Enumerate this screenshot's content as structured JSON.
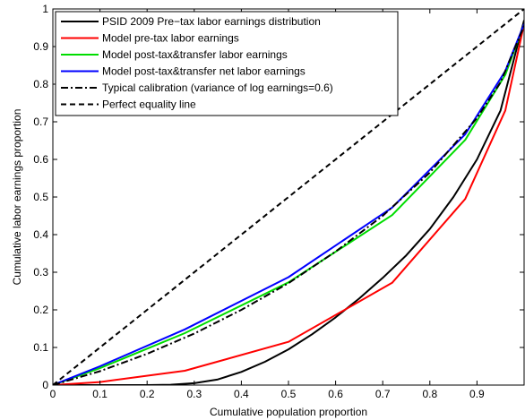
{
  "chart_data": {
    "type": "line",
    "title": "",
    "xlabel": "Cumulative population proportion",
    "ylabel": "Cumulative labor earnings proportion",
    "xlim": [
      0,
      1
    ],
    "ylim": [
      0,
      1
    ],
    "xticks": [
      0,
      0.1,
      0.2,
      0.3,
      0.4,
      0.5,
      0.6,
      0.7,
      0.8,
      0.9
    ],
    "xtick_labels": [
      "0",
      "0.1",
      "0.2",
      "0.3",
      "0.4",
      "0.5",
      "0.6",
      "0.7",
      "0.8",
      "0.9"
    ],
    "yticks": [
      0,
      0.1,
      0.2,
      0.3,
      0.4,
      0.5,
      0.6,
      0.7,
      0.8,
      0.9,
      1
    ],
    "ytick_labels": [
      "0",
      "0.1",
      "0.2",
      "0.3",
      "0.4",
      "0.5",
      "0.6",
      "0.7",
      "0.8",
      "0.9",
      "1"
    ],
    "grid": false,
    "legend_position": "top-left",
    "series": [
      {
        "name": "PSID 2009 Pre−tax labor earnings distribution",
        "color": "#000000",
        "dash": "solid",
        "x": [
          0,
          0.2,
          0.25,
          0.3,
          0.35,
          0.4,
          0.45,
          0.5,
          0.55,
          0.6,
          0.65,
          0.7,
          0.75,
          0.8,
          0.85,
          0.9,
          0.95,
          1.0
        ],
        "y": [
          0,
          0,
          0.001,
          0.005,
          0.015,
          0.035,
          0.062,
          0.095,
          0.135,
          0.18,
          0.23,
          0.285,
          0.345,
          0.415,
          0.5,
          0.6,
          0.73,
          0.97
        ]
      },
      {
        "name": "Model pre-tax labor earnings",
        "color": "#ff0000",
        "dash": "solid",
        "x": [
          0,
          0.1,
          0.28,
          0.5,
          0.72,
          0.875,
          0.96,
          1.0
        ],
        "y": [
          0,
          0.008,
          0.038,
          0.115,
          0.272,
          0.495,
          0.73,
          0.96
        ]
      },
      {
        "name": "Model post-tax&transfer labor earnings",
        "color": "#00dd00",
        "dash": "solid",
        "x": [
          0,
          0.1,
          0.28,
          0.5,
          0.72,
          0.875,
          0.96,
          1.0
        ],
        "y": [
          0,
          0.045,
          0.138,
          0.273,
          0.452,
          0.652,
          0.825,
          0.96
        ]
      },
      {
        "name": "Model post-tax&transfer net labor earnings",
        "color": "#0000ff",
        "dash": "solid",
        "x": [
          0,
          0.1,
          0.28,
          0.5,
          0.72,
          0.875,
          0.96,
          1.0
        ],
        "y": [
          0,
          0.05,
          0.148,
          0.287,
          0.472,
          0.667,
          0.835,
          0.96
        ]
      },
      {
        "name": "Typical calibration (variance of log earnings=0.6)",
        "color": "#000000",
        "dash": "dashdot",
        "x": [
          0,
          0.1,
          0.2,
          0.3,
          0.4,
          0.5,
          0.6,
          0.7,
          0.8,
          0.9,
          0.95,
          1.0
        ],
        "y": [
          0,
          0.037,
          0.083,
          0.137,
          0.2,
          0.271,
          0.355,
          0.45,
          0.565,
          0.71,
          0.805,
          0.955
        ]
      },
      {
        "name": "Perfect equality line",
        "color": "#000000",
        "dash": "dashed",
        "x": [
          0,
          1
        ],
        "y": [
          0,
          1
        ]
      }
    ]
  }
}
